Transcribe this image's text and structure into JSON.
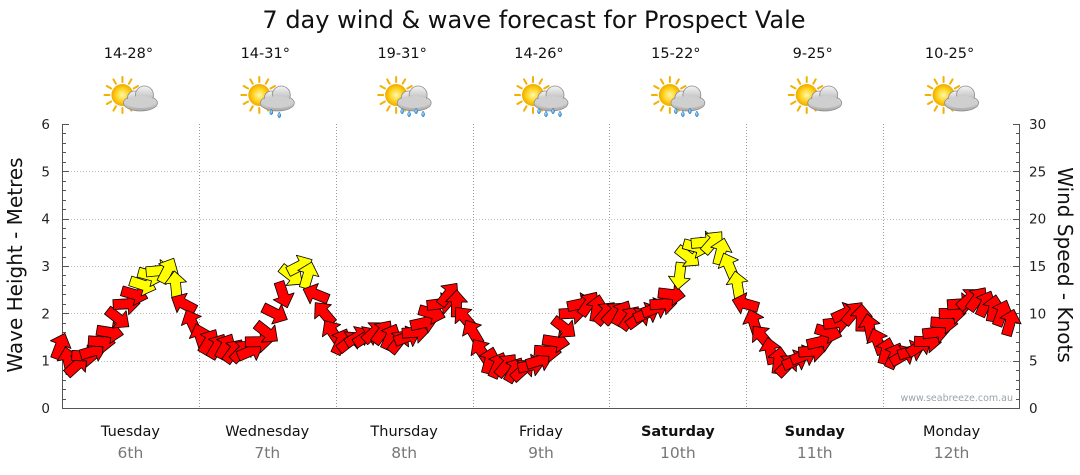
{
  "chart_data": {
    "type": "line",
    "title": "7 day wind & wave forecast for Prospect Vale",
    "ylabel": "Wave Height - Metres",
    "y2label": "Wind Speed - Knots",
    "ylim": [
      0,
      6
    ],
    "y2lim": [
      0,
      30
    ],
    "yticks": [
      "0",
      "1",
      "2",
      "3",
      "4",
      "5",
      "6"
    ],
    "y2ticks": [
      "0",
      "5",
      "10",
      "15",
      "20",
      "25",
      "30"
    ],
    "grid": true,
    "credit": "www.seabreeze.com.au",
    "days": [
      {
        "name": "Tuesday",
        "num": "6th",
        "temp": "14-28°",
        "icon": "partly-cloudy-icon",
        "bold": false
      },
      {
        "name": "Wednesday",
        "num": "7th",
        "temp": "14-31°",
        "icon": "light-rain-icon",
        "bold": false
      },
      {
        "name": "Thursday",
        "num": "8th",
        "temp": "19-31°",
        "icon": "rain-icon",
        "bold": false
      },
      {
        "name": "Friday",
        "num": "9th",
        "temp": "14-26°",
        "icon": "rain-icon",
        "bold": false
      },
      {
        "name": "Saturday",
        "num": "10th",
        "temp": "15-22°",
        "icon": "rain-icon",
        "bold": true
      },
      {
        "name": "Sunday",
        "num": "11th",
        "temp": "9-25°",
        "icon": "partly-cloudy-icon",
        "bold": true
      },
      {
        "name": "Monday",
        "num": "12th",
        "temp": "10-25°",
        "icon": "partly-cloudy-icon",
        "bold": false
      }
    ],
    "wind_series": {
      "name": "Wind Speed",
      "unit": "knots",
      "values": [
        6.5,
        5,
        4.5,
        5.5,
        6,
        7,
        8,
        9.5,
        11,
        12,
        13,
        14,
        14.5,
        14.5,
        13,
        11,
        9,
        7.5,
        7,
        6.5,
        6.5,
        6,
        6,
        6,
        7,
        8,
        10,
        12,
        14,
        15,
        14,
        12,
        10,
        8,
        7,
        7,
        7.5,
        7.5,
        8,
        8,
        7.5,
        7,
        7.5,
        8,
        9,
        10,
        11,
        12,
        11,
        9.5,
        8,
        6,
        5,
        4.5,
        4.5,
        4,
        4,
        4.5,
        5,
        6,
        7,
        8.5,
        10,
        11,
        11,
        10.5,
        10,
        10,
        10,
        9.5,
        9.5,
        10,
        10.5,
        11,
        12,
        14,
        16,
        17,
        17.5,
        17.5,
        16.5,
        15,
        13,
        11,
        9,
        7.5,
        6,
        5,
        4.5,
        5,
        5.5,
        6,
        7,
        8,
        9,
        10,
        10,
        9.5,
        8.5,
        7,
        6,
        5.5,
        5.5,
        6,
        6.5,
        7,
        8,
        9,
        10,
        11,
        11.5,
        11.5,
        11,
        10.5,
        10,
        9
      ],
      "colors": {
        "calm": "#ff0000",
        "strong": "#ffff00"
      },
      "threshold_knots": 13
    }
  }
}
